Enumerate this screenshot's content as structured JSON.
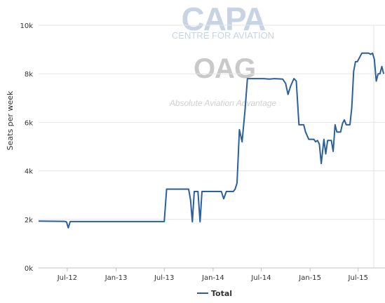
{
  "watermark": {
    "capa_logo": "CAPA",
    "capa_tagline": "CENTRE FOR AVIATION",
    "oag_logo": "OAG",
    "oag_tagline": "Absolute Aviation Advantage"
  },
  "colors": {
    "series": "#2b5f9e",
    "grid": "#e6e6e6",
    "axis": "#c0c0c0",
    "watermark": "#c8d4e3",
    "oag_watermark": "#c9c9c9"
  },
  "chart_data": {
    "type": "line",
    "ylabel": "Seats per week",
    "ylim": [
      0,
      10000
    ],
    "yticks": [
      0,
      2000,
      4000,
      6000,
      8000,
      10000
    ],
    "ytick_labels": [
      "0k",
      "2k",
      "4k",
      "6k",
      "8k",
      "10k"
    ],
    "xlim": [
      "2012-03-15",
      "2015-10-10"
    ],
    "xticks": [
      "2012-07-01",
      "2013-01-01",
      "2013-07-01",
      "2014-01-01",
      "2014-07-01",
      "2015-01-01",
      "2015-07-01"
    ],
    "xtick_labels": [
      "Jul-12",
      "Jan-13",
      "Jul-13",
      "Jan-14",
      "Jul-14",
      "Jan-15",
      "Jul-15"
    ],
    "grid": true,
    "legend_position": "bottom-center",
    "series": [
      {
        "name": "Total",
        "x": [
          "2012-03-15",
          "2012-06-20",
          "2012-06-28",
          "2012-07-05",
          "2012-07-12",
          "2013-06-01",
          "2013-07-01",
          "2013-07-10",
          "2013-10-01",
          "2013-10-08",
          "2013-10-15",
          "2013-10-22",
          "2013-11-05",
          "2013-11-13",
          "2013-11-20",
          "2013-12-01",
          "2014-02-01",
          "2014-02-10",
          "2014-02-20",
          "2014-03-01",
          "2014-03-10",
          "2014-03-18",
          "2014-03-25",
          "2014-04-01",
          "2014-04-10",
          "2014-04-20",
          "2014-05-01",
          "2014-05-10",
          "2014-05-20",
          "2014-06-01",
          "2014-07-01",
          "2014-07-10",
          "2014-08-01",
          "2014-08-20",
          "2014-09-20",
          "2014-10-01",
          "2014-10-10",
          "2014-10-20",
          "2014-11-01",
          "2014-11-10",
          "2014-11-20",
          "2014-11-27",
          "2014-12-08",
          "2014-12-15",
          "2014-12-27",
          "2015-01-08",
          "2015-01-15",
          "2015-01-22",
          "2015-01-29",
          "2015-02-05",
          "2015-02-12",
          "2015-02-22",
          "2015-03-01",
          "2015-03-08",
          "2015-03-15",
          "2015-03-22",
          "2015-03-29",
          "2015-04-05",
          "2015-04-12",
          "2015-04-19",
          "2015-04-26",
          "2015-05-03",
          "2015-05-10",
          "2015-05-17",
          "2015-05-24",
          "2015-05-31",
          "2015-06-07",
          "2015-06-14",
          "2015-06-21",
          "2015-06-28",
          "2015-07-15",
          "2015-08-01",
          "2015-08-10",
          "2015-08-17",
          "2015-08-24",
          "2015-08-31",
          "2015-09-07",
          "2015-09-14",
          "2015-09-21",
          "2015-09-28",
          "2015-10-05"
        ],
        "y": [
          1930,
          1920,
          1900,
          1650,
          1910,
          1910,
          1910,
          3250,
          3250,
          2800,
          1900,
          3150,
          3150,
          1900,
          3150,
          3150,
          3150,
          2850,
          3150,
          3150,
          3150,
          3150,
          3250,
          3500,
          5700,
          5200,
          6500,
          7800,
          7800,
          7800,
          7800,
          7800,
          7780,
          7800,
          7780,
          7600,
          7150,
          7500,
          7800,
          7700,
          5900,
          5900,
          5900,
          5600,
          5300,
          5300,
          5300,
          5200,
          5250,
          5100,
          4300,
          5300,
          4700,
          5250,
          5250,
          5250,
          4800,
          5900,
          5600,
          5600,
          5600,
          5950,
          6100,
          5900,
          5900,
          5900,
          6600,
          8100,
          8500,
          8500,
          8850,
          8850,
          8850,
          8800,
          8850,
          8600,
          7700,
          8000,
          8000,
          8300,
          8000
        ]
      }
    ]
  }
}
